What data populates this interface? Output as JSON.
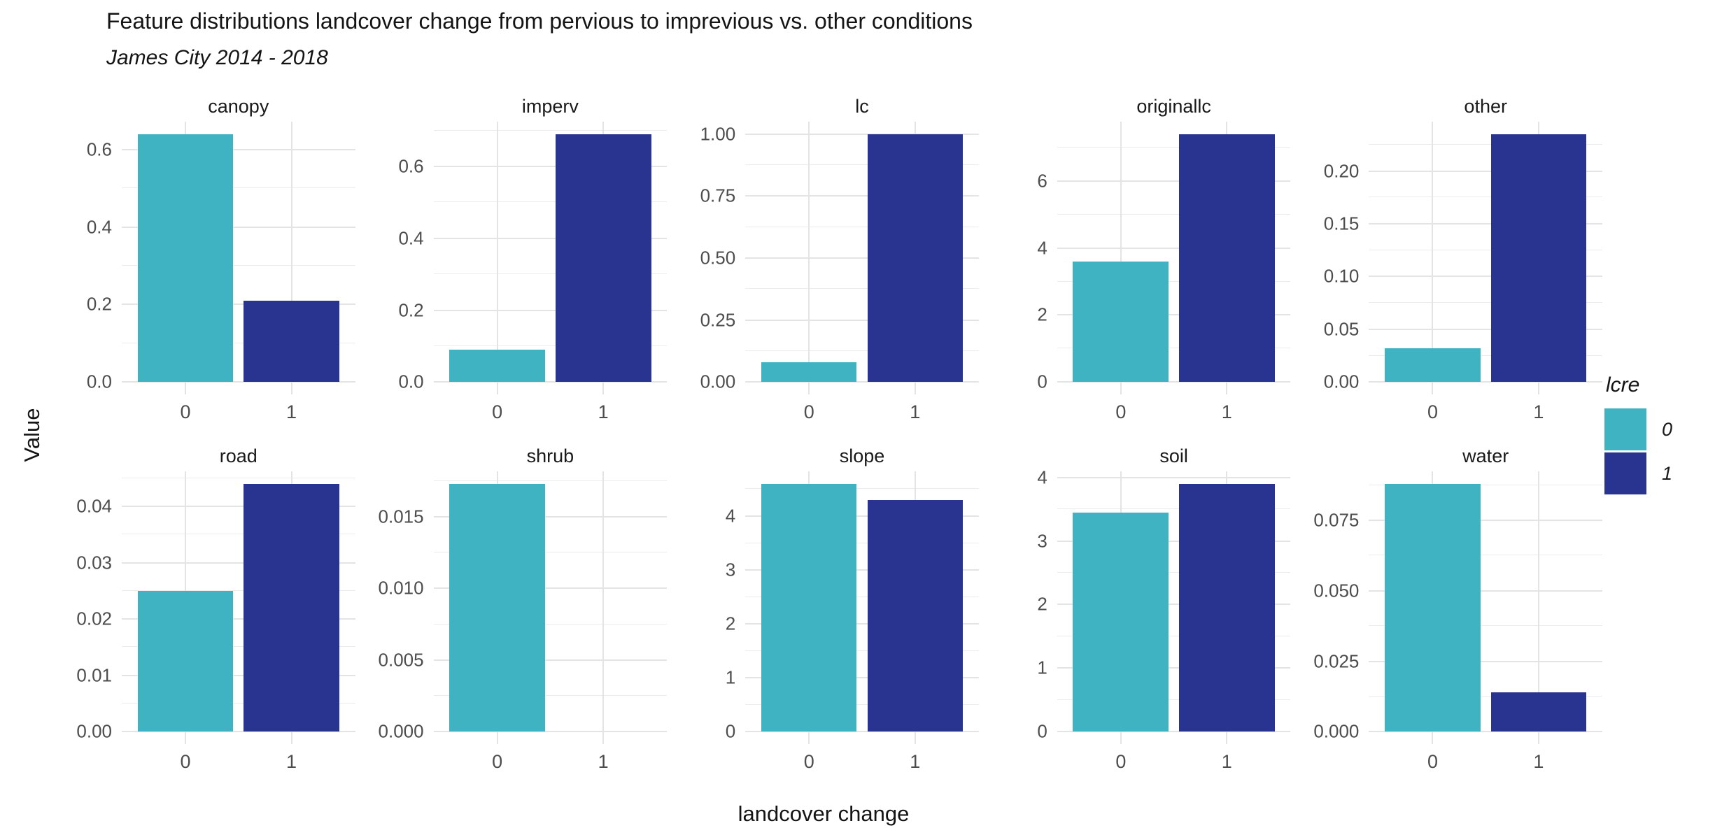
{
  "chart_data": {
    "type": "bar",
    "title": "Feature distributions landcover change from pervious to imprevious vs. other conditions",
    "subtitle": "James City 2014 - 2018",
    "xlabel": "landcover change",
    "ylabel": "Value",
    "categories": [
      "0",
      "1"
    ],
    "legend": {
      "title": "lcre",
      "position": "right",
      "items": [
        {
          "label": "0",
          "color": "#3fb3c2"
        },
        {
          "label": "1",
          "color": "#283490"
        }
      ]
    },
    "layout": {
      "facet_rows": 2,
      "facet_cols": 5,
      "grid": "major and minor horizontal gridlines, vertical gridlines at category centers, no axis lines, no tick marks",
      "gridline_color": "#e4e4e4",
      "y_expansion": 0.05
    },
    "facets": [
      {
        "name": "canopy",
        "values": [
          0.64,
          0.21
        ],
        "tick_values": [
          0,
          0.2,
          0.4,
          0.6
        ],
        "tick_labels": [
          "0.0",
          "0.2",
          "0.4",
          "0.6"
        ]
      },
      {
        "name": "imperv",
        "values": [
          0.09,
          0.69
        ],
        "tick_values": [
          0,
          0.2,
          0.4,
          0.6
        ],
        "tick_labels": [
          "0.0",
          "0.2",
          "0.4",
          "0.6"
        ]
      },
      {
        "name": "lc",
        "values": [
          0.08,
          1.0
        ],
        "tick_values": [
          0,
          0.25,
          0.5,
          0.75,
          1.0
        ],
        "tick_labels": [
          "0.00",
          "0.25",
          "0.50",
          "0.75",
          "1.00"
        ]
      },
      {
        "name": "originallc",
        "values": [
          3.6,
          7.4
        ],
        "tick_values": [
          0,
          2,
          4,
          6
        ],
        "tick_labels": [
          "0",
          "2",
          "4",
          "6"
        ]
      },
      {
        "name": "other",
        "values": [
          0.032,
          0.235
        ],
        "tick_values": [
          0,
          0.05,
          0.1,
          0.15,
          0.2
        ],
        "tick_labels": [
          "0.00",
          "0.05",
          "0.10",
          "0.15",
          "0.20"
        ]
      },
      {
        "name": "road",
        "values": [
          0.025,
          0.044
        ],
        "tick_values": [
          0,
          0.01,
          0.02,
          0.03,
          0.04
        ],
        "tick_labels": [
          "0.00",
          "0.01",
          "0.02",
          "0.03",
          "0.04"
        ]
      },
      {
        "name": "shrub",
        "values": [
          0.0173,
          0
        ],
        "tick_values": [
          0,
          0.005,
          0.01,
          0.015
        ],
        "tick_labels": [
          "0.000",
          "0.005",
          "0.010",
          "0.015"
        ]
      },
      {
        "name": "slope",
        "values": [
          4.6,
          4.3
        ],
        "tick_values": [
          0,
          1,
          2,
          3,
          4
        ],
        "tick_labels": [
          "0",
          "1",
          "2",
          "3",
          "4"
        ]
      },
      {
        "name": "soil",
        "values": [
          3.45,
          3.9
        ],
        "tick_values": [
          0,
          1,
          2,
          3,
          4
        ],
        "tick_labels": [
          "0",
          "1",
          "2",
          "3",
          "4"
        ]
      },
      {
        "name": "water",
        "values": [
          0.088,
          0.014
        ],
        "tick_values": [
          0,
          0.025,
          0.05,
          0.075
        ],
        "tick_labels": [
          "0.000",
          "0.025",
          "0.050",
          "0.075"
        ]
      }
    ]
  }
}
